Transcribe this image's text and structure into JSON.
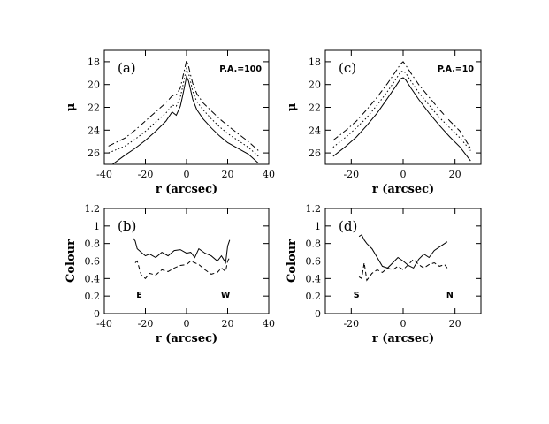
{
  "chart_data": [
    {
      "type": "line",
      "panel_tag": "(a)",
      "annotation": "P.A.=100",
      "xlabel": "r  (arcsec)",
      "ylabel": "μ",
      "xlim": [
        -40,
        40
      ],
      "ylim": [
        27,
        17
      ],
      "y_inverted": true,
      "xticks": [
        -40,
        -20,
        0,
        20,
        40
      ],
      "yticks": [
        18,
        20,
        22,
        24,
        26
      ],
      "series": [
        {
          "style": "solid",
          "x": [
            -36,
            -30,
            -25,
            -20,
            -15,
            -10,
            -7,
            -5,
            -3,
            -2,
            -1,
            0,
            1,
            2,
            3,
            5,
            8,
            12,
            16,
            20,
            25,
            30,
            35
          ],
          "y": [
            27,
            26.2,
            25.6,
            24.9,
            24.1,
            23.2,
            22.4,
            22.7,
            21.9,
            21.1,
            20.2,
            19.3,
            19.7,
            20.5,
            21.3,
            22.2,
            23.0,
            23.8,
            24.5,
            25.1,
            25.6,
            26.1,
            26.9
          ]
        },
        {
          "style": "dotted",
          "x": [
            -38,
            -30,
            -25,
            -20,
            -15,
            -10,
            -7,
            -5,
            -3,
            -2,
            -1,
            0,
            1,
            2,
            3,
            5,
            8,
            12,
            16,
            20,
            25,
            30,
            35
          ],
          "y": [
            26.0,
            25.4,
            24.8,
            24.1,
            23.3,
            22.5,
            21.8,
            21.9,
            21.1,
            20.3,
            19.4,
            18.6,
            19.0,
            19.8,
            20.6,
            21.5,
            22.2,
            23.0,
            23.7,
            24.3,
            24.9,
            25.5,
            26.3
          ]
        },
        {
          "style": "dashdot",
          "x": [
            -38,
            -30,
            -25,
            -20,
            -15,
            -10,
            -7,
            -5,
            -3,
            -2,
            -1,
            0,
            1,
            2,
            3,
            5,
            8,
            12,
            16,
            20,
            25,
            30,
            35
          ],
          "y": [
            25.4,
            24.7,
            24.0,
            23.2,
            22.4,
            21.6,
            21.0,
            20.9,
            20.3,
            19.5,
            18.7,
            17.9,
            18.4,
            19.2,
            19.9,
            20.8,
            21.6,
            22.3,
            23.0,
            23.6,
            24.3,
            25.0,
            25.8
          ]
        }
      ]
    },
    {
      "type": "line",
      "panel_tag": "(b)",
      "xlabel": "r  (arcsec)",
      "ylabel": "Colour",
      "xlim": [
        -40,
        40
      ],
      "ylim": [
        0,
        1.2
      ],
      "xticks": [
        -40,
        -20,
        0,
        20,
        40
      ],
      "yticks": [
        0,
        0.2,
        0.4,
        0.6,
        0.8,
        1,
        1.2
      ],
      "annotations": {
        "left": "E",
        "right": "W"
      },
      "series": [
        {
          "style": "solid",
          "x": [
            -26,
            -25,
            -24,
            -22,
            -20,
            -18,
            -15,
            -12,
            -9,
            -6,
            -3,
            0,
            2,
            4,
            6,
            9,
            12,
            15,
            17,
            19,
            20,
            21
          ],
          "y": [
            0.86,
            0.83,
            0.74,
            0.7,
            0.66,
            0.68,
            0.64,
            0.7,
            0.66,
            0.72,
            0.73,
            0.69,
            0.7,
            0.64,
            0.74,
            0.69,
            0.66,
            0.6,
            0.66,
            0.58,
            0.77,
            0.84
          ]
        },
        {
          "style": "dashed",
          "x": [
            -25,
            -24,
            -22,
            -20,
            -18,
            -15,
            -12,
            -9,
            -6,
            -3,
            0,
            2,
            4,
            6,
            9,
            12,
            15,
            17,
            19,
            20,
            21
          ],
          "y": [
            0.58,
            0.6,
            0.44,
            0.4,
            0.46,
            0.44,
            0.5,
            0.48,
            0.52,
            0.55,
            0.56,
            0.6,
            0.58,
            0.56,
            0.5,
            0.45,
            0.47,
            0.52,
            0.48,
            0.6,
            0.64
          ]
        }
      ]
    },
    {
      "type": "line",
      "panel_tag": "(c)",
      "annotation": "P.A.=10",
      "xlabel": "r  (arcsec)",
      "ylabel": "μ",
      "xlim": [
        -30,
        30
      ],
      "ylim": [
        27,
        17
      ],
      "y_inverted": true,
      "xticks": [
        -20,
        0,
        20
      ],
      "yticks": [
        18,
        20,
        22,
        24,
        26
      ],
      "series": [
        {
          "style": "solid",
          "x": [
            -27,
            -22,
            -18,
            -14,
            -10,
            -6,
            -3,
            -1,
            0,
            1,
            3,
            6,
            10,
            14,
            18,
            22,
            26
          ],
          "y": [
            26.3,
            25.4,
            24.6,
            23.6,
            22.5,
            21.2,
            20.2,
            19.5,
            19.4,
            19.6,
            20.3,
            21.3,
            22.5,
            23.6,
            24.6,
            25.5,
            26.7
          ]
        },
        {
          "style": "dotted",
          "x": [
            -27,
            -22,
            -18,
            -14,
            -10,
            -6,
            -3,
            -1,
            0,
            1,
            3,
            6,
            10,
            14,
            18,
            22,
            26
          ],
          "y": [
            25.5,
            24.6,
            23.8,
            22.9,
            21.8,
            20.6,
            19.6,
            18.9,
            18.8,
            19.0,
            19.7,
            20.7,
            21.8,
            22.9,
            23.8,
            24.7,
            25.8
          ]
        },
        {
          "style": "dashdot",
          "x": [
            -27,
            -22,
            -18,
            -14,
            -10,
            -6,
            -3,
            -1,
            0,
            1,
            3,
            6,
            10,
            14,
            18,
            22,
            26
          ],
          "y": [
            24.9,
            24.0,
            23.2,
            22.2,
            21.1,
            19.9,
            18.9,
            18.2,
            18.0,
            18.3,
            19.0,
            20.0,
            21.1,
            22.2,
            23.2,
            24.1,
            25.6
          ]
        }
      ]
    },
    {
      "type": "line",
      "panel_tag": "(d)",
      "xlabel": "r  (arcsec)",
      "ylabel": "Colour",
      "xlim": [
        -30,
        30
      ],
      "ylim": [
        0,
        1.2
      ],
      "xticks": [
        -20,
        0,
        20
      ],
      "yticks": [
        0,
        0.2,
        0.4,
        0.6,
        0.8,
        1,
        1.2
      ],
      "annotations": {
        "left": "S",
        "right": "N"
      },
      "series": [
        {
          "style": "solid",
          "x": [
            -17,
            -16,
            -15,
            -14,
            -12,
            -10,
            -8,
            -6,
            -4,
            -2,
            0,
            2,
            4,
            6,
            8,
            10,
            12,
            14,
            16,
            17
          ],
          "y": [
            0.88,
            0.9,
            0.84,
            0.8,
            0.74,
            0.64,
            0.54,
            0.52,
            0.58,
            0.64,
            0.6,
            0.55,
            0.52,
            0.62,
            0.68,
            0.64,
            0.72,
            0.76,
            0.8,
            0.82
          ]
        },
        {
          "style": "dashed",
          "x": [
            -17,
            -16,
            -15,
            -14,
            -12,
            -10,
            -8,
            -6,
            -4,
            -2,
            0,
            2,
            4,
            6,
            8,
            10,
            12,
            14,
            16,
            17
          ],
          "y": [
            0.42,
            0.4,
            0.58,
            0.38,
            0.46,
            0.5,
            0.47,
            0.52,
            0.5,
            0.54,
            0.5,
            0.56,
            0.62,
            0.56,
            0.52,
            0.56,
            0.58,
            0.54,
            0.56,
            0.52
          ]
        }
      ]
    }
  ]
}
